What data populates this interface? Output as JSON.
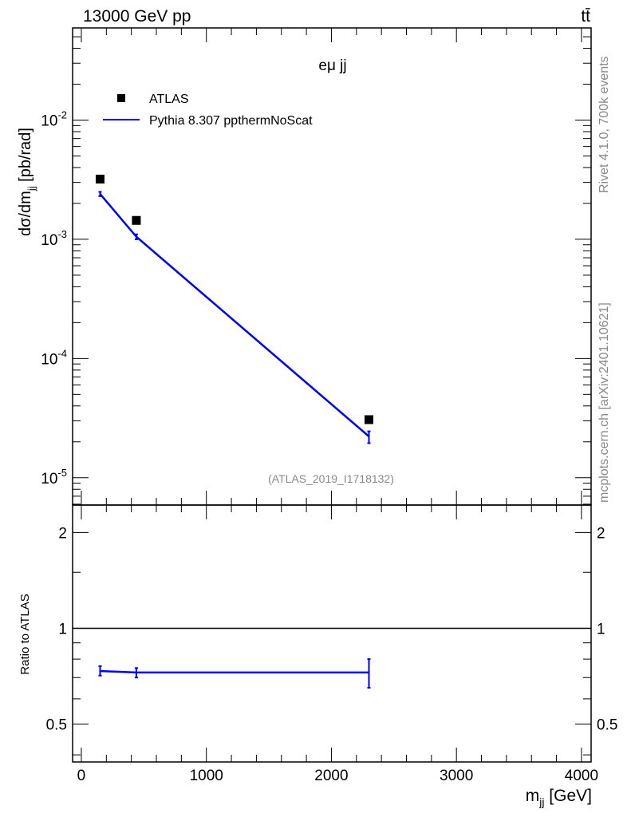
{
  "header": {
    "left": "13000 GeV pp",
    "right": "tt̄"
  },
  "side": {
    "rivet": "Rivet 4.1.0,  700k events",
    "mcplots": "mcplots.cern.ch [arXiv:2401.10621]"
  },
  "colors": {
    "data": "#000000",
    "mc": "#0000ff",
    "gray": "#888888"
  },
  "chart_data": [
    {
      "type": "scatter",
      "title": "eμ jj",
      "ylabel": "dσ/dm_jj [pb/rad]",
      "ylabel_main": "dσ/dm",
      "ylabel_sub": "jj",
      "ylabel_unit": " [pb/rad]",
      "yscale": "log",
      "ylim": [
        5.9e-06,
        0.0593
      ],
      "xlim": [
        -70,
        4077
      ],
      "yticks": [
        "10^-2",
        "10^-3",
        "10^-4",
        "10^-5"
      ],
      "ytick_values": [
        0.01,
        0.001,
        0.0001,
        1e-05
      ],
      "reference": "(ATLAS_2019_I1718132)",
      "legend": [
        {
          "label": "ATLAS",
          "marker": "square"
        },
        {
          "label": "Pythia 8.307 ppthermNoScat",
          "marker": "line"
        }
      ],
      "legend_position": "top-left",
      "series": [
        {
          "name": "ATLAS",
          "x": [
            150,
            440,
            2300
          ],
          "y": [
            0.0032,
            0.00144,
            3.07e-05
          ]
        },
        {
          "name": "Pythia 8.307 ppthermNoScat",
          "x": [
            150,
            440,
            2300
          ],
          "y": [
            0.0024,
            0.00105,
            2.22e-05
          ],
          "yerr_lo": [
            0.0023,
            0.001,
            1.95e-05
          ],
          "yerr_hi": [
            0.0025,
            0.0011,
            2.45e-05
          ]
        }
      ]
    },
    {
      "type": "line",
      "ylabel": "Ratio to ATLAS",
      "xlabel": "m_jj [GeV]",
      "xlabel_main": "m",
      "xlabel_sub": "jj",
      "xlabel_unit": " [GeV]",
      "yscale": "log",
      "ylim": [
        0.38,
        2.44
      ],
      "xlim": [
        -70,
        4077
      ],
      "xticks": [
        "0",
        "1000",
        "2000",
        "3000",
        "4000"
      ],
      "xtick_values": [
        0,
        1000,
        2000,
        3000,
        4000
      ],
      "yticks": [
        "0.5",
        "1",
        "2"
      ],
      "ytick_values": [
        0.5,
        1,
        2
      ],
      "series": [
        {
          "name": "Pythia 8.307 ppthermNoScat / ATLAS",
          "x": [
            150,
            440,
            2300
          ],
          "y": [
            0.734,
            0.726,
            0.726
          ],
          "yerr_lo": [
            0.71,
            0.7,
            0.65
          ],
          "yerr_hi": [
            0.76,
            0.75,
            0.8
          ]
        }
      ]
    }
  ]
}
